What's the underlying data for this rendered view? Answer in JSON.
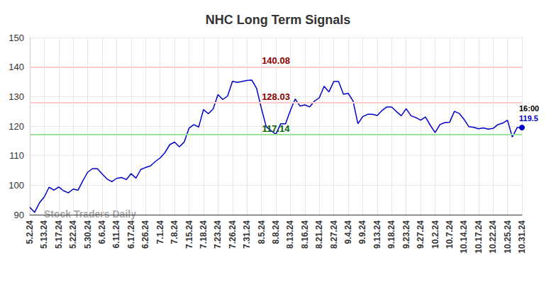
{
  "chart_data": {
    "type": "line",
    "title": "NHC Long Term Signals",
    "watermark": "Stock Traders Daily",
    "categories": [
      "5.2.24",
      null,
      null,
      "5.13.24",
      null,
      null,
      "5.17.24",
      null,
      null,
      "5.22.24",
      null,
      null,
      "5.30.24",
      null,
      null,
      "6.6.24",
      null,
      null,
      "6.11.24",
      null,
      null,
      "6.17.24",
      null,
      null,
      "6.26.24",
      null,
      null,
      "7.1.24",
      null,
      null,
      "7.8.24",
      null,
      null,
      "7.15.24",
      null,
      null,
      "7.18.24",
      null,
      null,
      "7.23.24",
      null,
      null,
      "7.26.24",
      null,
      null,
      "7.31.24",
      null,
      null,
      "8.5.24",
      null,
      null,
      "8.8.24",
      null,
      null,
      "8.13.24",
      null,
      null,
      "8.16.24",
      null,
      null,
      "8.21.24",
      null,
      null,
      "8.27.24",
      null,
      null,
      "9.4.24",
      null,
      null,
      "9.9.24",
      null,
      null,
      "9.13.24",
      null,
      null,
      "9.18.24",
      null,
      null,
      "9.23.24",
      null,
      null,
      "9.27.24",
      null,
      null,
      "10.2.24",
      null,
      null,
      "10.7.24",
      null,
      null,
      "10.14.24",
      null,
      null,
      "10.17.24",
      null,
      null,
      "10.22.24",
      null,
      null,
      "10.25.24",
      null,
      null,
      "10.31.24"
    ],
    "values": [
      92.5,
      90.8,
      94,
      96,
      99.3,
      98.3,
      99.4,
      98.1,
      97.4,
      98.7,
      98.3,
      101.5,
      104.4,
      105.6,
      105.6,
      103.8,
      102.1,
      101.2,
      102.3,
      102.6,
      101.9,
      103.9,
      102.4,
      105.3,
      106,
      106.5,
      108,
      109.2,
      111,
      113.7,
      114.6,
      113,
      114.6,
      119.3,
      120.5,
      119.7,
      125.6,
      124.2,
      125.8,
      130.7,
      129,
      130.2,
      135.2,
      134.8,
      135.1,
      135.5,
      135.6,
      132.8,
      126,
      119.8,
      118.5,
      117.2,
      120.8,
      120.8,
      125.3,
      129.2,
      126.8,
      127.2,
      126.5,
      128.5,
      129.6,
      133.5,
      131.6,
      135.1,
      135.1,
      130.8,
      131.1,
      128.5,
      120.8,
      123.2,
      124,
      124,
      123.6,
      125.3,
      126.5,
      126.5,
      124.9,
      123.5,
      125.9,
      123.5,
      122.9,
      122,
      123.1,
      120.3,
      117.8,
      120.5,
      121.2,
      121.3,
      125,
      124.3,
      122.3,
      119.8,
      119.6,
      119.1,
      119.4,
      119,
      119.2,
      120.5,
      121,
      122,
      116.3,
      119.5,
      119.5
    ],
    "color": "#0000cc",
    "ylim": [
      90,
      150
    ],
    "yticks": [
      90,
      100,
      110,
      120,
      130,
      140,
      150
    ],
    "grid": true,
    "reference_lines": [
      {
        "value": 140.08,
        "label": "140.08",
        "color": "#8b0000"
      },
      {
        "value": 128.03,
        "label": "128.03",
        "color": "#8b0000"
      },
      {
        "value": 117.14,
        "label": "117.14",
        "color": "#006400"
      }
    ],
    "end_label": {
      "time": "16:00",
      "value": 119.5
    }
  }
}
